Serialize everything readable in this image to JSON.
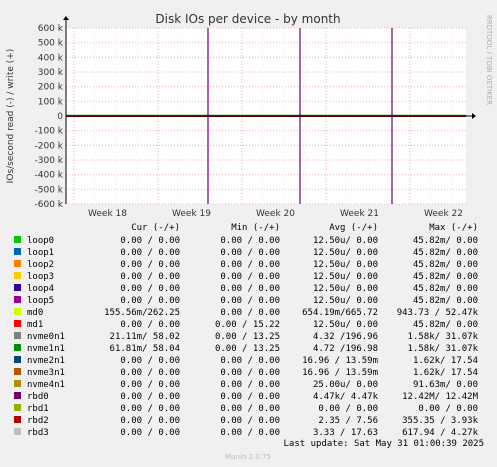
{
  "chart_data": {
    "type": "line",
    "title": "Disk IOs per device - by month",
    "ylabel": "IOs/second read (-) / write (+)",
    "side_label": "RRDTOOL / TOBI OETIKER",
    "ylim": [
      -600000,
      600000
    ],
    "y_ticks": [
      {
        "value": 600000,
        "label": "600 k"
      },
      {
        "value": 500000,
        "label": "500 k"
      },
      {
        "value": 400000,
        "label": "400 k"
      },
      {
        "value": 300000,
        "label": "300 k"
      },
      {
        "value": 200000,
        "label": "200 k"
      },
      {
        "value": 100000,
        "label": "100 k"
      },
      {
        "value": 0,
        "label": "0"
      },
      {
        "value": -100000,
        "label": "-100 k"
      },
      {
        "value": -200000,
        "label": "-200 k"
      },
      {
        "value": -300000,
        "label": "-300 k"
      },
      {
        "value": -400000,
        "label": "-400 k"
      },
      {
        "value": -500000,
        "label": "-500 k"
      },
      {
        "value": -600000,
        "label": "-600 k"
      }
    ],
    "x_ticks": [
      "Week 18",
      "Week 19",
      "Week 20",
      "Week 21",
      "Week 22"
    ],
    "grid": true,
    "spikes": [
      {
        "series": "rbd0",
        "x": 0.355,
        "write": 600000,
        "read": -600000
      },
      {
        "series": "rbd0",
        "x": 0.585,
        "write": 600000,
        "read": -600000
      },
      {
        "series": "rbd0",
        "x": 0.815,
        "write": 600000,
        "read": -600000
      }
    ],
    "legend_header": {
      "cur": "Cur (-/+)",
      "min": "Min (-/+)",
      "avg": "Avg (-/+)",
      "max": "Max (-/+)"
    },
    "series": [
      {
        "name": "loop0",
        "color": "#00cc00",
        "cur": "0.00 /  0.00",
        "min": "0.00 /  0.00",
        "avg": "12.50u/  0.00",
        "max": "45.82m/  0.00"
      },
      {
        "name": "loop1",
        "color": "#0066b3",
        "cur": "0.00 /  0.00",
        "min": "0.00 /  0.00",
        "avg": "12.50u/  0.00",
        "max": "45.82m/  0.00"
      },
      {
        "name": "loop2",
        "color": "#ff8000",
        "cur": "0.00 /  0.00",
        "min": "0.00 /  0.00",
        "avg": "12.50u/  0.00",
        "max": "45.82m/  0.00"
      },
      {
        "name": "loop3",
        "color": "#ffcc00",
        "cur": "0.00 /  0.00",
        "min": "0.00 /  0.00",
        "avg": "12.50u/  0.00",
        "max": "45.82m/  0.00"
      },
      {
        "name": "loop4",
        "color": "#330099",
        "cur": "0.00 /  0.00",
        "min": "0.00 /  0.00",
        "avg": "12.50u/  0.00",
        "max": "45.82m/  0.00"
      },
      {
        "name": "loop5",
        "color": "#990099",
        "cur": "0.00 /  0.00",
        "min": "0.00 /  0.00",
        "avg": "12.50u/  0.00",
        "max": "45.82m/  0.00"
      },
      {
        "name": "md0",
        "color": "#ccff00",
        "cur": "155.56m/262.25",
        "min": "0.00 /  0.00",
        "avg": "654.19m/665.72",
        "max": "943.73 / 52.47k"
      },
      {
        "name": "md1",
        "color": "#ff0000",
        "cur": "0.00 /  0.00",
        "min": "0.00 / 15.22",
        "avg": "12.50u/  0.00",
        "max": "45.82m/  0.00"
      },
      {
        "name": "nvme0n1",
        "color": "#808080",
        "cur": "21.11m/ 58.02",
        "min": "0.00 / 13.25",
        "avg": "4.32 /196.96",
        "max": "1.58k/ 31.07k"
      },
      {
        "name": "nvme1n1",
        "color": "#008f00",
        "cur": "61.81m/ 58.04",
        "min": "0.00 / 13.25",
        "avg": "4.72 /196.98",
        "max": "1.58k/ 31.07k"
      },
      {
        "name": "nvme2n1",
        "color": "#00487d",
        "cur": "0.00 /  0.00",
        "min": "0.00 /  0.00",
        "avg": "16.96 / 13.59m",
        "max": "1.62k/ 17.54"
      },
      {
        "name": "nvme3n1",
        "color": "#b35a00",
        "cur": "0.00 /  0.00",
        "min": "0.00 /  0.00",
        "avg": "16.96 / 13.59m",
        "max": "1.62k/ 17.54"
      },
      {
        "name": "nvme4n1",
        "color": "#b38f00",
        "cur": "0.00 /  0.00",
        "min": "0.00 /  0.00",
        "avg": "25.00u/  0.00",
        "max": "91.63m/  0.00"
      },
      {
        "name": "rbd0",
        "color": "#6b006b",
        "cur": "0.00 /  0.00",
        "min": "0.00 /  0.00",
        "avg": "4.47k/  4.47k",
        "max": "12.42M/ 12.42M"
      },
      {
        "name": "rbd1",
        "color": "#8fb300",
        "cur": "0.00 /  0.00",
        "min": "0.00 /  0.00",
        "avg": "0.00 /  0.00",
        "max": "0.00 /  0.00"
      },
      {
        "name": "rbd2",
        "color": "#b30000",
        "cur": "0.00 /  0.00",
        "min": "0.00 /  0.00",
        "avg": "2.35 /  7.56",
        "max": "355.35 /  3.93k"
      },
      {
        "name": "rbd3",
        "color": "#bebebe",
        "cur": "0.00 /  0.00",
        "min": "0.00 /  0.00",
        "avg": "3.33 / 17.63",
        "max": "617.94 /  4.27k"
      }
    ],
    "last_update": "Last update: Sat May 31 01:00:39 2025",
    "footer": "Munin 2.0.75"
  }
}
